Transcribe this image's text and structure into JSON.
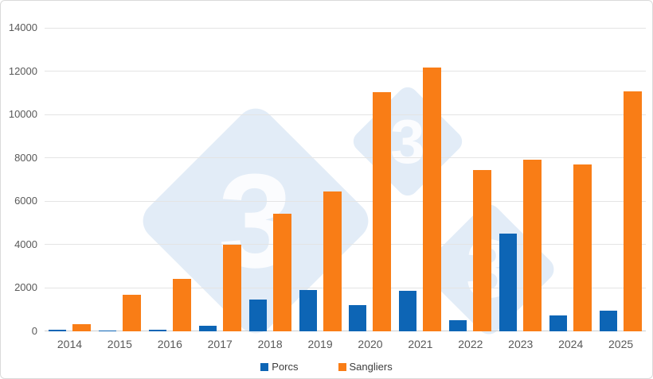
{
  "chart_data": {
    "type": "bar",
    "title": "",
    "xlabel": "",
    "ylabel": "",
    "categories": [
      "2014",
      "2015",
      "2016",
      "2017",
      "2018",
      "2019",
      "2020",
      "2021",
      "2022",
      "2023",
      "2024",
      "2025"
    ],
    "series": [
      {
        "name": "Porcs",
        "color": "#0d65b5",
        "values": [
          80,
          40,
          60,
          250,
          1450,
          1900,
          1220,
          1870,
          520,
          4500,
          730,
          950
        ]
      },
      {
        "name": "Sangliers",
        "color": "#f97d16",
        "values": [
          330,
          1680,
          2430,
          4000,
          5420,
          6450,
          11020,
          12150,
          7440,
          7900,
          7700,
          11060
        ]
      }
    ],
    "ylim": [
      0,
      14000
    ],
    "yticks": [
      0,
      2000,
      4000,
      6000,
      8000,
      10000,
      12000,
      14000
    ],
    "grid": "horizontal",
    "legend_position": "bottom"
  },
  "watermark": {
    "glyph": "3",
    "diamond_color": "#e2ecf7"
  }
}
